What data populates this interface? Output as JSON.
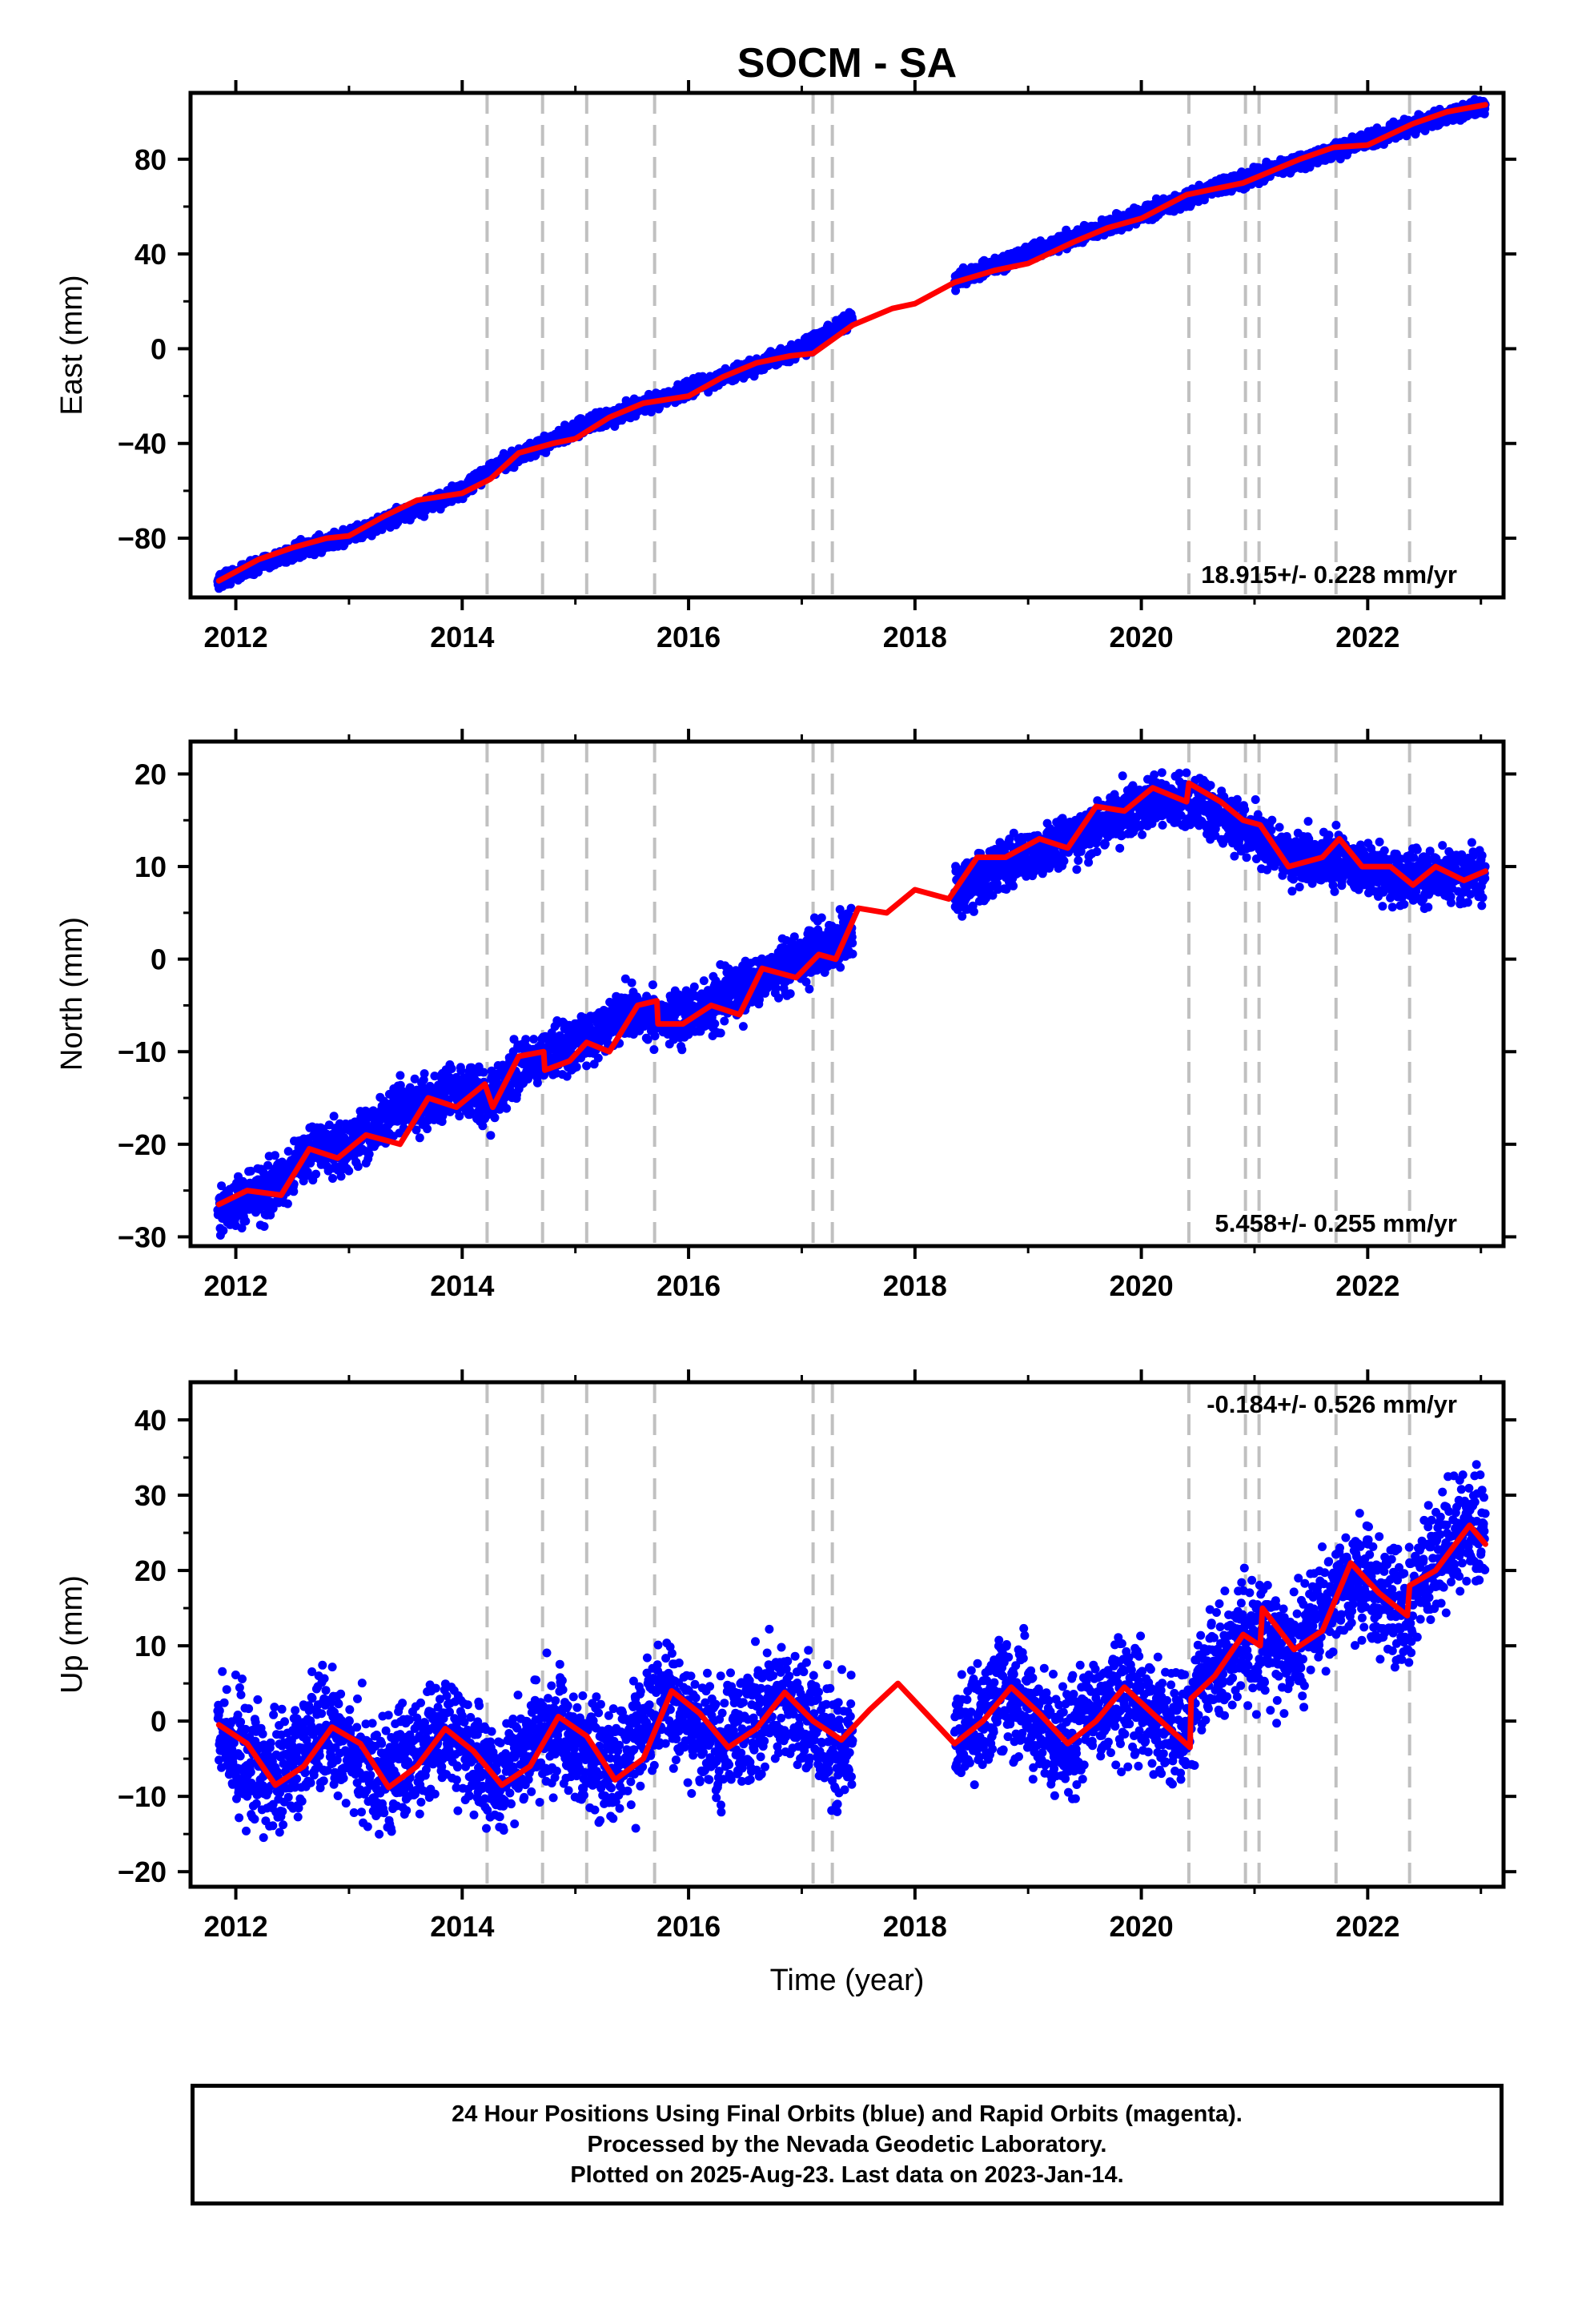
{
  "title": "SOCM - SA",
  "x_axis_label": "Time (year)",
  "x_ticks": [
    "2012",
    "2014",
    "2016",
    "2018",
    "2020",
    "2022"
  ],
  "caption": {
    "line1": "24 Hour Positions Using Final Orbits (blue) and Rapid Orbits (magenta).",
    "line2": "Processed by the Nevada Geodetic Laboratory.",
    "line3": "Plotted on 2025-Aug-23. Last data on 2023-Jan-14."
  },
  "colors": {
    "points": "#0000ff",
    "model": "#ff0000",
    "steps": "#c0c0c0",
    "axes": "#000000"
  },
  "chart_data": [
    {
      "type": "scatter",
      "component": "east",
      "ylabel": "East (mm)",
      "rate_label": "18.915+/- 0.228 mm/yr",
      "rate_position": "bottom-right",
      "xlim": [
        2011.6,
        2023.2
      ],
      "ylim": [
        -105,
        108
      ],
      "yticks": [
        -80,
        -40,
        0,
        40,
        80
      ],
      "ytick_labels": [
        "−80",
        "−40",
        "0",
        "40",
        "80"
      ],
      "series": [
        {
          "name": "Final Orbits (blue)",
          "kind": "points",
          "x_start": 2011.84,
          "x_end": 2023.04,
          "gaps": [
            [
              2017.45,
              2018.35
            ]
          ],
          "trend": [
            [
              2011.85,
              -98
            ],
            [
              2012.5,
              -86
            ],
            [
              2013.0,
              -79
            ],
            [
              2014.0,
              -60
            ],
            [
              2014.25,
              -51
            ],
            [
              2015.0,
              -34
            ],
            [
              2016.0,
              -17
            ],
            [
              2017.0,
              0
            ],
            [
              2017.45,
              13
            ],
            [
              2018.35,
              29
            ],
            [
              2019.0,
              40
            ],
            [
              2020.0,
              57
            ],
            [
              2021.0,
              73
            ],
            [
              2022.0,
              88
            ],
            [
              2022.4,
              94
            ],
            [
              2023.04,
              103
            ]
          ],
          "noise_mm": 1.6
        },
        {
          "name": "Model",
          "kind": "line",
          "points": [
            [
              2011.85,
              -98
            ],
            [
              2012.2,
              -89
            ],
            [
              2012.5,
              -84
            ],
            [
              2012.8,
              -80
            ],
            [
              2013.0,
              -79
            ],
            [
              2013.3,
              -71
            ],
            [
              2013.6,
              -64
            ],
            [
              2014.0,
              -61
            ],
            [
              2014.25,
              -55
            ],
            [
              2014.5,
              -44
            ],
            [
              2014.8,
              -40
            ],
            [
              2015.0,
              -38
            ],
            [
              2015.3,
              -29
            ],
            [
              2015.6,
              -23
            ],
            [
              2016.0,
              -20
            ],
            [
              2016.3,
              -12
            ],
            [
              2016.6,
              -6
            ],
            [
              2016.9,
              -3
            ],
            [
              2017.1,
              -2
            ],
            [
              2017.45,
              10
            ],
            [
              2017.8,
              17
            ],
            [
              2018.0,
              19
            ],
            [
              2018.35,
              28
            ],
            [
              2018.7,
              33
            ],
            [
              2019.0,
              36
            ],
            [
              2019.4,
              45
            ],
            [
              2019.7,
              51
            ],
            [
              2020.0,
              55
            ],
            [
              2020.4,
              65
            ],
            [
              2020.9,
              70
            ],
            [
              2021.0,
              72
            ],
            [
              2021.4,
              80
            ],
            [
              2021.7,
              85
            ],
            [
              2022.0,
              86
            ],
            [
              2022.4,
              95
            ],
            [
              2022.7,
              100
            ],
            [
              2023.04,
              103
            ]
          ]
        }
      ]
    },
    {
      "type": "scatter",
      "component": "north",
      "ylabel": "North (mm)",
      "rate_label": "5.458+/- 0.255 mm/yr",
      "rate_position": "bottom-right",
      "xlim": [
        2011.6,
        2023.2
      ],
      "ylim": [
        -31,
        23.5
      ],
      "yticks": [
        -30,
        -20,
        -10,
        0,
        10,
        20
      ],
      "ytick_labels": [
        "−30",
        "−20",
        "−10",
        "0",
        "10",
        "20"
      ],
      "series": [
        {
          "name": "Final Orbits (blue)",
          "kind": "points",
          "x_start": 2011.84,
          "x_end": 2023.04,
          "gaps": [
            [
              2017.45,
              2018.35
            ]
          ],
          "trend": [
            [
              2011.85,
              -27
            ],
            [
              2012.3,
              -25
            ],
            [
              2012.6,
              -21
            ],
            [
              2013.0,
              -20
            ],
            [
              2013.5,
              -16
            ],
            [
              2014.0,
              -14
            ],
            [
              2014.25,
              -15
            ],
            [
              2014.6,
              -11
            ],
            [
              2015.0,
              -9
            ],
            [
              2015.5,
              -6
            ],
            [
              2016.0,
              -6
            ],
            [
              2016.5,
              -3
            ],
            [
              2017.0,
              0
            ],
            [
              2017.45,
              3
            ],
            [
              2018.35,
              7
            ],
            [
              2018.7,
              10
            ],
            [
              2019.2,
              12
            ],
            [
              2019.6,
              14
            ],
            [
              2020.0,
              17
            ],
            [
              2020.5,
              17
            ],
            [
              2020.9,
              14
            ],
            [
              2021.3,
              11
            ],
            [
              2021.7,
              11
            ],
            [
              2022.2,
              9
            ],
            [
              2022.6,
              9
            ],
            [
              2023.04,
              9
            ]
          ],
          "noise_mm": 1.4
        },
        {
          "name": "Model",
          "kind": "line",
          "points": [
            [
              2011.85,
              -26.5
            ],
            [
              2012.1,
              -25
            ],
            [
              2012.4,
              -25.5
            ],
            [
              2012.65,
              -20.5
            ],
            [
              2012.9,
              -21.5
            ],
            [
              2013.15,
              -19
            ],
            [
              2013.45,
              -20
            ],
            [
              2013.7,
              -15
            ],
            [
              2013.95,
              -16
            ],
            [
              2014.2,
              -13.5
            ],
            [
              2014.27,
              -16
            ],
            [
              2014.5,
              -10.5
            ],
            [
              2014.72,
              -10
            ],
            [
              2014.73,
              -12
            ],
            [
              2014.95,
              -11
            ],
            [
              2015.1,
              -9
            ],
            [
              2015.3,
              -10
            ],
            [
              2015.55,
              -5
            ],
            [
              2015.72,
              -4.5
            ],
            [
              2015.73,
              -7
            ],
            [
              2015.95,
              -7
            ],
            [
              2016.2,
              -5
            ],
            [
              2016.45,
              -6
            ],
            [
              2016.65,
              -1
            ],
            [
              2016.95,
              -2
            ],
            [
              2017.15,
              0.5
            ],
            [
              2017.3,
              0
            ],
            [
              2017.5,
              5.5
            ],
            [
              2017.75,
              5
            ],
            [
              2018.0,
              7.5
            ],
            [
              2018.3,
              6.5
            ],
            [
              2018.55,
              11
            ],
            [
              2018.8,
              11
            ],
            [
              2019.1,
              13
            ],
            [
              2019.35,
              12
            ],
            [
              2019.6,
              16.5
            ],
            [
              2019.85,
              16
            ],
            [
              2020.1,
              18.5
            ],
            [
              2020.4,
              17
            ],
            [
              2020.42,
              19
            ],
            [
              2020.7,
              17
            ],
            [
              2020.9,
              15
            ],
            [
              2021.05,
              14.5
            ],
            [
              2021.3,
              10
            ],
            [
              2021.6,
              11
            ],
            [
              2021.75,
              13
            ],
            [
              2021.95,
              10
            ],
            [
              2022.2,
              10
            ],
            [
              2022.4,
              8
            ],
            [
              2022.6,
              10
            ],
            [
              2022.85,
              8.5
            ],
            [
              2023.04,
              9.5
            ]
          ]
        }
      ]
    },
    {
      "type": "scatter",
      "component": "up",
      "ylabel": "Up (mm)",
      "rate_label": "-0.184+/- 0.526 mm/yr",
      "rate_position": "top-right",
      "xlim": [
        2011.6,
        2023.2
      ],
      "ylim": [
        -22,
        45
      ],
      "yticks": [
        -20,
        -10,
        0,
        10,
        20,
        30,
        40
      ],
      "ytick_labels": [
        "−20",
        "−10",
        "0",
        "10",
        "20",
        "30",
        "40"
      ],
      "series": [
        {
          "name": "Final Orbits (blue)",
          "kind": "points",
          "x_start": 2011.84,
          "x_end": 2023.04,
          "gaps": [
            [
              2017.45,
              2018.35
            ]
          ],
          "trend": [
            [
              2011.85,
              -1
            ],
            [
              2012.3,
              -8
            ],
            [
              2012.8,
              -1
            ],
            [
              2013.3,
              -8
            ],
            [
              2013.8,
              -1
            ],
            [
              2014.3,
              -8
            ],
            [
              2014.8,
              0
            ],
            [
              2015.3,
              -7
            ],
            [
              2015.8,
              3
            ],
            [
              2016.3,
              -3
            ],
            [
              2016.8,
              3
            ],
            [
              2017.3,
              -3
            ],
            [
              2018.35,
              -3
            ],
            [
              2018.8,
              4
            ],
            [
              2019.3,
              -3
            ],
            [
              2019.8,
              4
            ],
            [
              2020.4,
              -3
            ],
            [
              2020.5,
              4
            ],
            [
              2020.9,
              11
            ],
            [
              2021.4,
              10
            ],
            [
              2021.9,
              20
            ],
            [
              2022.35,
              14
            ],
            [
              2022.4,
              18
            ],
            [
              2022.9,
              26
            ],
            [
              2023.04,
              24
            ]
          ],
          "noise_mm": 3.8
        },
        {
          "name": "Model",
          "kind": "line",
          "points": [
            [
              2011.85,
              -0.5
            ],
            [
              2012.1,
              -3
            ],
            [
              2012.35,
              -8.5
            ],
            [
              2012.6,
              -6
            ],
            [
              2012.85,
              -0.8
            ],
            [
              2013.1,
              -3
            ],
            [
              2013.35,
              -8.8
            ],
            [
              2013.6,
              -6
            ],
            [
              2013.85,
              -1
            ],
            [
              2014.1,
              -4
            ],
            [
              2014.35,
              -8.5
            ],
            [
              2014.6,
              -6
            ],
            [
              2014.85,
              0.6
            ],
            [
              2015.1,
              -2
            ],
            [
              2015.35,
              -7.8
            ],
            [
              2015.6,
              -5
            ],
            [
              2015.85,
              4
            ],
            [
              2016.1,
              1
            ],
            [
              2016.35,
              -3.5
            ],
            [
              2016.6,
              -1
            ],
            [
              2016.85,
              3.8
            ],
            [
              2017.1,
              0
            ],
            [
              2017.35,
              -2.5
            ],
            [
              2017.6,
              1.5
            ],
            [
              2017.85,
              5
            ],
            [
              2018.1,
              1
            ],
            [
              2018.35,
              -3
            ],
            [
              2018.6,
              0
            ],
            [
              2018.85,
              4.5
            ],
            [
              2019.1,
              1
            ],
            [
              2019.35,
              -3
            ],
            [
              2019.6,
              0
            ],
            [
              2019.85,
              4.5
            ],
            [
              2020.1,
              1
            ],
            [
              2020.43,
              -3.5
            ],
            [
              2020.44,
              3
            ],
            [
              2020.65,
              6
            ],
            [
              2020.9,
              11.5
            ],
            [
              2021.05,
              10
            ],
            [
              2021.07,
              15
            ],
            [
              2021.35,
              9.5
            ],
            [
              2021.6,
              12
            ],
            [
              2021.85,
              21
            ],
            [
              2022.1,
              17
            ],
            [
              2022.35,
              14
            ],
            [
              2022.37,
              18
            ],
            [
              2022.6,
              20
            ],
            [
              2022.9,
              26
            ],
            [
              2023.04,
              23.5
            ]
          ]
        }
      ]
    }
  ],
  "step_epochs": [
    2014.22,
    2014.71,
    2015.1,
    2015.7,
    2017.1,
    2017.27,
    2020.42,
    2020.92,
    2021.04,
    2021.72,
    2022.37
  ]
}
